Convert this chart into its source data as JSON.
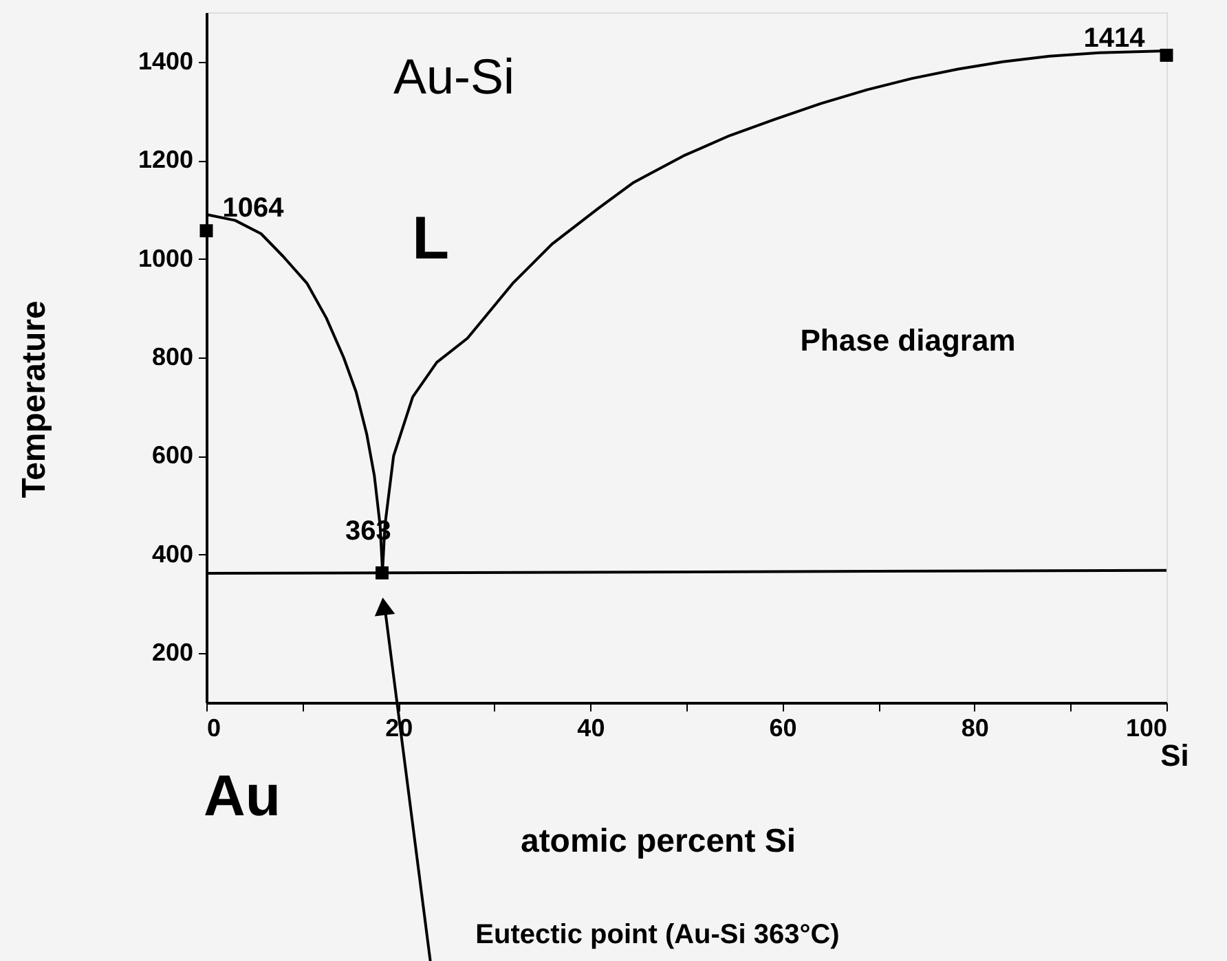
{
  "chart_data": {
    "type": "line",
    "title": "Au-Si",
    "xlabel": "atomic percent Si",
    "ylabel": "Temperature",
    "xlim": [
      0,
      100
    ],
    "ylim": [
      100,
      1500
    ],
    "xticks": [
      0,
      {
        "value": 10,
        "label": null
      },
      20,
      {
        "value": 30,
        "label": null
      },
      40,
      {
        "value": 50,
        "label": null
      },
      60,
      {
        "value": 70,
        "label": null
      },
      80,
      {
        "value": 90,
        "label": null
      },
      100
    ],
    "yticks": [
      200,
      400,
      600,
      800,
      1000,
      1200,
      1400
    ],
    "grid": false,
    "line_style": "solid",
    "series": [
      {
        "color": "#000000",
        "x": [
          0,
          3,
          5.7,
          8,
          10.5,
          12.5,
          14.3,
          15.6,
          16.7,
          17.5,
          18.1,
          18.35
        ],
        "values": [
          1090,
          1078,
          1051,
          1005,
          950,
          880,
          800,
          730,
          645,
          560,
          459,
          366
        ]
      },
      {
        "color": "#000000",
        "x": [
          18.35,
          18.6,
          19.5,
          21.5,
          24,
          27.2,
          31.9,
          36,
          40.8,
          44.5,
          49.7,
          54.5,
          59.2,
          64,
          68.8,
          73.5,
          78.3,
          83,
          87.8,
          93,
          100
        ],
        "values": [
          366,
          459,
          600,
          720,
          790,
          839,
          950,
          1030,
          1102,
          1155,
          1209,
          1250,
          1283,
          1315,
          1343,
          1366,
          1385,
          1400,
          1411,
          1418,
          1422
        ]
      },
      {
        "color": "#000000",
        "x": [
          0,
          100
        ],
        "values": [
          362,
          368
        ]
      },
      {
        "type": "scatter",
        "marker": "square",
        "color": "#000000",
        "x": [
          0,
          18.3,
          100
        ],
        "values": [
          1057,
          363,
          1413
        ]
      }
    ],
    "annotations": [
      {
        "text": "1064",
        "x": 0,
        "y": 1064
      },
      {
        "text": "363",
        "x": 18.3,
        "y": 363
      },
      {
        "text": "1414",
        "x": 100,
        "y": 1414
      },
      "L",
      "Phase diagram",
      "Au",
      "Si",
      "Eutectic point (Au-Si 363°C)"
    ]
  }
}
